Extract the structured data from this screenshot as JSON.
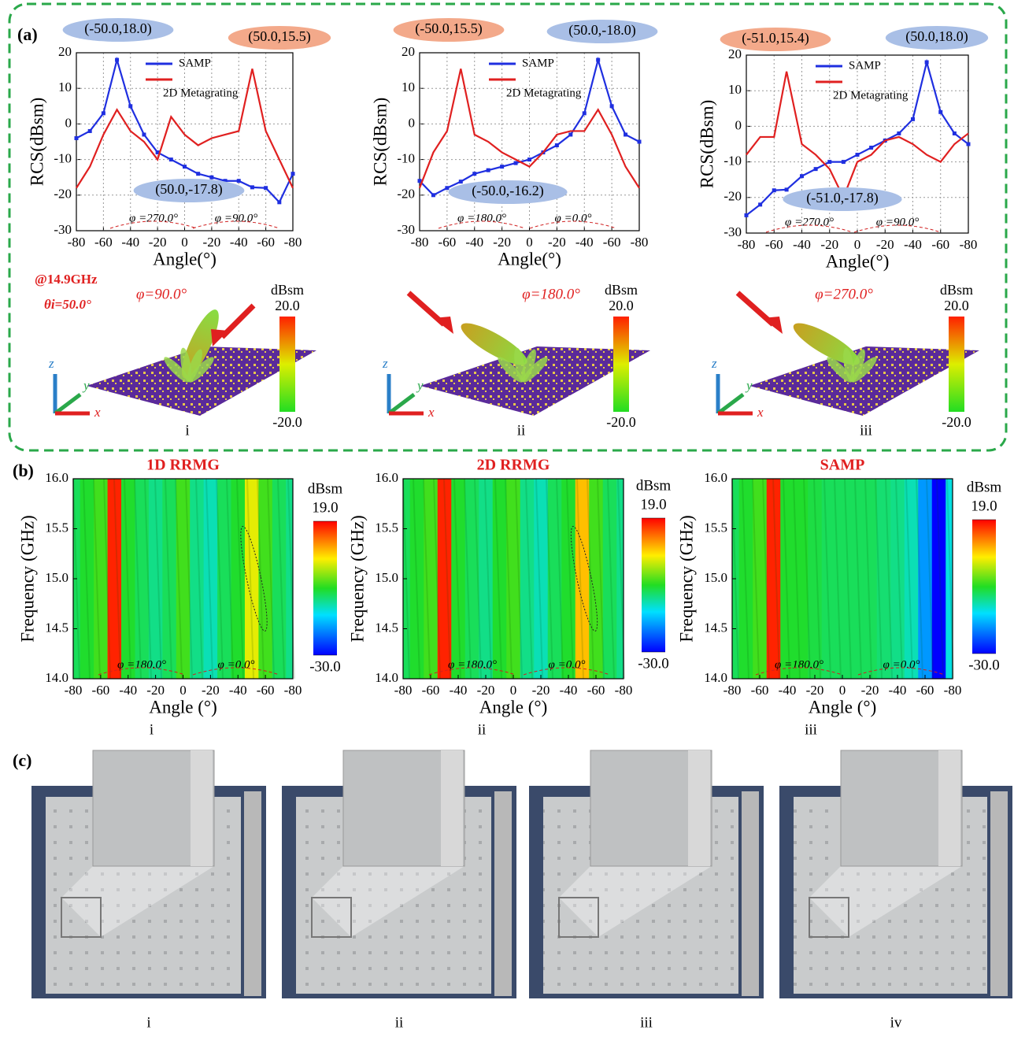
{
  "panel_labels": [
    "(a)",
    "(b)",
    "(c)"
  ],
  "chart_data": [
    {
      "type": "line",
      "xlabel": "Angle(°)",
      "ylabel": "RCS(dBsm)",
      "xlim": [
        -80,
        80
      ],
      "ylim": [
        -30,
        20
      ],
      "xticks": [
        -80,
        -60,
        -40,
        -20,
        0,
        {
          "value": 20,
          "label": "-20"
        },
        {
          "value": 40,
          "label": "-40"
        },
        {
          "value": 60,
          "label": "-60"
        },
        {
          "value": 80,
          "label": "-80"
        }
      ],
      "yticks": [
        -30,
        -20,
        -10,
        0,
        10,
        20
      ],
      "grid": true,
      "legend": "top",
      "x": [
        -80,
        -70,
        -60,
        -50,
        -40,
        -30,
        -20,
        -10,
        0,
        10,
        20,
        30,
        40,
        50,
        60,
        70,
        80
      ],
      "series": [
        {
          "name": "SAMP",
          "color": "#1f2fe0",
          "values": [
            -4,
            -2,
            3,
            18,
            5,
            -3,
            -8,
            -10,
            -12,
            -14,
            -15,
            -16,
            -16,
            -17.8,
            -18,
            -22,
            -14
          ]
        },
        {
          "name": "2D Metagrating",
          "color": "#e02020",
          "values": [
            -18,
            -12,
            -3,
            4,
            -2,
            -5,
            -10,
            2,
            -3,
            -6,
            -4,
            -3,
            -2,
            15.5,
            -2,
            -10,
            -18
          ]
        }
      ],
      "annotations": [
        {
          "text": "(-50.0,18.0)",
          "color": "#a9bfe6"
        },
        {
          "text": "(50.0,15.5)",
          "color": "#f3a98a"
        },
        {
          "text": "(50.0,-17.8)",
          "color": "#a9bfe6"
        },
        {
          "text": "φ =270.0°"
        },
        {
          "text": "φ =90.0°"
        }
      ]
    },
    {
      "type": "line",
      "xlabel": "Angle(°)",
      "ylabel": "RCS(dBsm)",
      "xlim": [
        -80,
        80
      ],
      "ylim": [
        -30,
        20
      ],
      "xticks": [
        -80,
        -60,
        -40,
        -20,
        0,
        {
          "value": 20,
          "label": "-20"
        },
        {
          "value": 40,
          "label": "-40"
        },
        {
          "value": 60,
          "label": "-60"
        },
        {
          "value": 80,
          "label": "-80"
        }
      ],
      "yticks": [
        -30,
        -20,
        -10,
        0,
        10,
        20
      ],
      "grid": true,
      "legend": "top",
      "x": [
        -80,
        -70,
        -60,
        -50,
        -40,
        -30,
        -20,
        -10,
        0,
        10,
        20,
        30,
        40,
        50,
        60,
        70,
        80
      ],
      "series": [
        {
          "name": "SAMP",
          "color": "#1f2fe0",
          "values": [
            -16,
            -20,
            -18,
            -16.2,
            -14,
            -13,
            -12,
            -11,
            -10,
            -8,
            -6,
            -3,
            3,
            18,
            5,
            -3,
            -5
          ]
        },
        {
          "name": "2D Metagrating",
          "color": "#e02020",
          "values": [
            -18,
            -8,
            -2,
            15.5,
            -3,
            -5,
            -8,
            -10,
            -12,
            -8,
            -3,
            -2,
            -2,
            4,
            -3,
            -12,
            -18
          ]
        }
      ],
      "annotations": [
        {
          "text": "(-50.0,15.5)",
          "color": "#f3a98a"
        },
        {
          "text": "(50.0,-18.0)",
          "color": "#a9bfe6"
        },
        {
          "text": "(-50.0,-16.2)",
          "color": "#a9bfe6"
        },
        {
          "text": "φ =180.0°"
        },
        {
          "text": "φ =0.0°"
        }
      ]
    },
    {
      "type": "line",
      "xlabel": "Angle(°)",
      "ylabel": "RCS(dBsm)",
      "xlim": [
        -80,
        80
      ],
      "ylim": [
        -30,
        20
      ],
      "xticks": [
        -80,
        -60,
        -40,
        -20,
        0,
        {
          "value": 20,
          "label": "-20"
        },
        {
          "value": 40,
          "label": "-40"
        },
        {
          "value": 60,
          "label": "-60"
        },
        {
          "value": 80,
          "label": "-80"
        }
      ],
      "yticks": [
        -30,
        -20,
        -10,
        0,
        10,
        20
      ],
      "grid": true,
      "legend": "top",
      "x": [
        -80,
        -70,
        -60,
        -51,
        -40,
        -30,
        -20,
        -10,
        0,
        10,
        20,
        30,
        40,
        50,
        60,
        70,
        80
      ],
      "series": [
        {
          "name": "SAMP",
          "color": "#1f2fe0",
          "values": [
            -25,
            -22,
            -18,
            -17.8,
            -14,
            -12,
            -10,
            -10,
            -8,
            -6,
            -4,
            -2,
            2,
            18,
            4,
            -2,
            -5
          ]
        },
        {
          "name": "2D Metagrating",
          "color": "#e02020",
          "values": [
            -8,
            -3,
            -3,
            15.4,
            -5,
            -8,
            -12,
            -20,
            -10,
            -8,
            -4,
            -3,
            -5,
            -8,
            -10,
            -5,
            -2
          ]
        }
      ],
      "annotations": [
        {
          "text": "(-51.0,15.4)",
          "color": "#f3a98a"
        },
        {
          "text": "(50.0,18.0)",
          "color": "#a9bfe6"
        },
        {
          "text": "(-51.0,-17.8)",
          "color": "#a9bfe6"
        },
        {
          "text": "φ =270.0°"
        },
        {
          "text": "φ =90.0°"
        }
      ]
    },
    {
      "type": "heatmap",
      "title": "1D RRMG",
      "xlabel": "Angle (°)",
      "ylabel": "Frequency (GHz)",
      "xlim": [
        -80,
        80
      ],
      "ylim": [
        14,
        16
      ],
      "xticks": [
        -80,
        -60,
        -40,
        -20,
        0,
        {
          "value": 20,
          "label": "-20"
        },
        {
          "value": 40,
          "label": "-40"
        },
        {
          "value": 60,
          "label": "-60"
        },
        {
          "value": 80,
          "label": "-80"
        }
      ],
      "yticks": [
        {
          "value": 14,
          "label": "14.0"
        },
        {
          "value": 14.5,
          "label": "14.5"
        },
        {
          "value": 15,
          "label": "15.0"
        },
        {
          "value": 15.5,
          "label": "15.5"
        },
        {
          "value": 16,
          "label": "16.0"
        }
      ],
      "x": [
        -80,
        -70,
        -60,
        -50,
        -40,
        -30,
        -20,
        -10,
        0,
        10,
        20,
        30,
        40,
        50,
        60,
        70,
        80
      ],
      "values": [
        -8,
        -6,
        -4,
        17,
        -6,
        -8,
        -10,
        -8,
        -4,
        -10,
        -12,
        -8,
        -6,
        4,
        -4,
        -8,
        -10
      ],
      "colorbar_label": "dBsm",
      "zlim": [
        -30,
        19
      ],
      "zticks": [
        {
          "value": 19,
          "label": "19.0"
        },
        {
          "value": -30,
          "label": "-30.0"
        }
      ],
      "annotations": [
        {
          "text": "φ =180.0°"
        },
        {
          "text": "φ =0.0°"
        }
      ],
      "label": "i"
    },
    {
      "type": "heatmap",
      "title": "2D RRMG",
      "xlabel": "Angle (°)",
      "ylabel": "Frequency (GHz)",
      "xlim": [
        -80,
        80
      ],
      "ylim": [
        14,
        16
      ],
      "xticks": [
        -80,
        -60,
        -40,
        -20,
        0,
        {
          "value": 20,
          "label": "-20"
        },
        {
          "value": 40,
          "label": "-40"
        },
        {
          "value": 60,
          "label": "-60"
        },
        {
          "value": 80,
          "label": "-80"
        }
      ],
      "yticks": [
        {
          "value": 14,
          "label": "14.0"
        },
        {
          "value": 14.5,
          "label": "14.5"
        },
        {
          "value": 15,
          "label": "15.0"
        },
        {
          "value": 15.5,
          "label": "15.5"
        },
        {
          "value": 16,
          "label": "16.0"
        }
      ],
      "x": [
        -80,
        -70,
        -60,
        -50,
        -40,
        -30,
        -20,
        -10,
        0,
        10,
        20,
        30,
        40,
        50,
        60,
        70,
        80
      ],
      "values": [
        -8,
        -6,
        -4,
        17,
        -6,
        -8,
        -10,
        -6,
        -4,
        -10,
        -12,
        -8,
        -6,
        8,
        -4,
        -8,
        -10
      ],
      "colorbar_label": "dBsm",
      "zlim": [
        -30,
        19
      ],
      "zticks": [
        {
          "value": 19,
          "label": "19.0"
        },
        {
          "value": -30,
          "label": "-30.0"
        }
      ],
      "annotations": [
        {
          "text": "φ =180.0°"
        },
        {
          "text": "φ =0.0°"
        }
      ],
      "label": "ii"
    },
    {
      "type": "heatmap",
      "title": "SAMP",
      "xlabel": "Angle (°)",
      "ylabel": "Frequency (GHz)",
      "xlim": [
        -80,
        80
      ],
      "ylim": [
        14,
        16
      ],
      "xticks": [
        -80,
        -60,
        -40,
        -20,
        0,
        {
          "value": 20,
          "label": "-20"
        },
        {
          "value": 40,
          "label": "-40"
        },
        {
          "value": 60,
          "label": "-60"
        },
        {
          "value": 80,
          "label": "-80"
        }
      ],
      "yticks": [
        {
          "value": 14,
          "label": "14.0"
        },
        {
          "value": 14.5,
          "label": "14.5"
        },
        {
          "value": 15,
          "label": "15.0"
        },
        {
          "value": 15.5,
          "label": "15.5"
        },
        {
          "value": 16,
          "label": "16.0"
        }
      ],
      "x": [
        -80,
        -70,
        -60,
        -50,
        -40,
        -30,
        -20,
        -10,
        0,
        10,
        20,
        30,
        40,
        50,
        60,
        70,
        80
      ],
      "values": [
        -8,
        -6,
        -4,
        17,
        -6,
        -6,
        -7,
        -8,
        -8,
        -8,
        -8,
        -9,
        -10,
        -12,
        -20,
        -30,
        -14
      ],
      "colorbar_label": "dBsm",
      "zlim": [
        -30,
        19
      ],
      "zticks": [
        {
          "value": 19,
          "label": "19.0"
        },
        {
          "value": -30,
          "label": "-30.0"
        }
      ],
      "annotations": [
        {
          "text": "φ =180.0°"
        },
        {
          "text": "φ =0.0°"
        }
      ],
      "label": "iii"
    }
  ],
  "illustrations": {
    "frequency": "@14.9GHz",
    "incidence": "θi=50.0°",
    "items": [
      {
        "phi": "φ=90.0°",
        "colorbar_label": "dBsm",
        "colorbar_ticks": [
          "20.0",
          "-20.0"
        ],
        "axes": [
          "z",
          "y",
          "x"
        ],
        "label": "i"
      },
      {
        "phi": "φ=180.0°",
        "colorbar_label": "dBsm",
        "colorbar_ticks": [
          "20.0",
          "-20.0"
        ],
        "axes": [
          "z",
          "y",
          "x"
        ],
        "label": "ii"
      },
      {
        "phi": "φ=270.0°",
        "colorbar_label": "dBsm",
        "colorbar_ticks": [
          "20.0",
          "-20.0"
        ],
        "axes": [
          "z",
          "y",
          "x"
        ],
        "label": "iii"
      }
    ]
  },
  "photos": [
    {
      "label": "i"
    },
    {
      "label": "ii"
    },
    {
      "label": "iii"
    },
    {
      "label": "iv"
    }
  ]
}
